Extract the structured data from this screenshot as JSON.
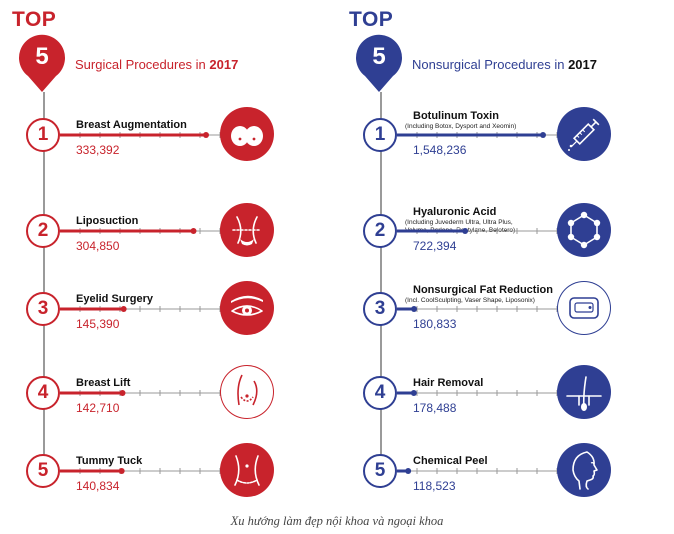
{
  "colors": {
    "surgical": "#c8232c",
    "nonsurgical": "#2f3f93",
    "axis": "#9a9a9a"
  },
  "panels": [
    {
      "top_label": "TOP",
      "number": "5",
      "heading_text": "Surgical Procedures in",
      "heading_year": "2017",
      "items": [
        {
          "rank": "1",
          "name": "Breast Augmentation",
          "sub": "",
          "value_text": "333,392",
          "icon": "breast-icon"
        },
        {
          "rank": "2",
          "name": "Liposuction",
          "sub": "",
          "value_text": "304,850",
          "icon": "waist-icon"
        },
        {
          "rank": "3",
          "name": "Eyelid Surgery",
          "sub": "",
          "value_text": "145,390",
          "icon": "eye-icon"
        },
        {
          "rank": "4",
          "name": "Breast Lift",
          "sub": "",
          "value_text": "142,710",
          "icon": "breast-lift-icon"
        },
        {
          "rank": "5",
          "name": "Tummy Tuck",
          "sub": "",
          "value_text": "140,834",
          "icon": "tummy-icon"
        }
      ]
    },
    {
      "top_label": "TOP",
      "number": "5",
      "heading_text": "Nonsurgical Procedures in",
      "heading_year": "2017",
      "items": [
        {
          "rank": "1",
          "name": "Botulinum Toxin",
          "sub": "(Including Botox, Dysport and Xeomin)",
          "value_text": "1,548,236",
          "icon": "syringe-icon"
        },
        {
          "rank": "2",
          "name": "Hyaluronic Acid",
          "sub": "(Including Juvederm Ultra, Ultra Plus,\nVoluma, Perlane, Restylane, Belotero)",
          "value_text": "722,394",
          "icon": "molecule-icon"
        },
        {
          "rank": "3",
          "name": "Nonsurgical Fat Reduction",
          "sub": "(Incl. CoolSculpting, Vaser Shape, Liposonix)",
          "value_text": "180,833",
          "icon": "fat-reduction-icon"
        },
        {
          "rank": "4",
          "name": "Hair Removal",
          "sub": "",
          "value_text": "178,488",
          "icon": "hair-follicle-icon"
        },
        {
          "rank": "5",
          "name": "Chemical Peel",
          "sub": "",
          "value_text": "118,523",
          "icon": "face-profile-icon"
        }
      ]
    }
  ],
  "caption": "Xu hướng làm đẹp nội khoa và ngoại khoa",
  "chart_data": [
    {
      "type": "bar",
      "title": "Surgical Procedures in 2017",
      "categories": [
        "Breast Augmentation",
        "Liposuction",
        "Eyelid Surgery",
        "Breast Lift",
        "Tummy Tuck"
      ],
      "values": [
        333392,
        304850,
        145390,
        142710,
        140834
      ]
    },
    {
      "type": "bar",
      "title": "Nonsurgical Procedures in 2017",
      "categories": [
        "Botulinum Toxin",
        "Hyaluronic Acid",
        "Nonsurgical Fat Reduction",
        "Hair Removal",
        "Chemical Peel"
      ],
      "values": [
        1548236,
        722394,
        180833,
        178488,
        118523
      ]
    }
  ]
}
